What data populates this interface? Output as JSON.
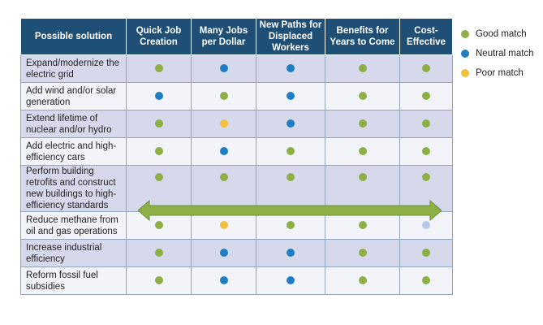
{
  "chart_data": {
    "type": "table",
    "columns": [
      "Possible solution",
      "Quick Job Creation",
      "Many Jobs per Dollar",
      "New Paths for Displaced Workers",
      "Benefits for Years to Come",
      "Cost-Effective"
    ],
    "rows": [
      {
        "label": "Expand/modernize the electric grid",
        "ratings": [
          "good",
          "neutral",
          "neutral",
          "good",
          "good"
        ]
      },
      {
        "label": "Add wind and/or solar generation",
        "ratings": [
          "neutral",
          "good",
          "neutral",
          "good",
          "good"
        ]
      },
      {
        "label": "Extend lifetime of nuclear and/or hydro",
        "ratings": [
          "good",
          "poor",
          "neutral",
          "good",
          "good"
        ]
      },
      {
        "label": "Add electric and high-efficiency cars",
        "ratings": [
          "good",
          "neutral",
          "good",
          "good",
          "good"
        ]
      },
      {
        "label": "Perform building retrofits and construct new buildings to high-efficiency standards",
        "ratings": [
          "good",
          "good",
          "good",
          "good",
          "good"
        ]
      },
      {
        "label": "Reduce methane from oil and gas operations",
        "ratings": [
          "good",
          "poor",
          "good",
          "good",
          "light-neutral"
        ]
      },
      {
        "label": "Increase industrial efficiency",
        "ratings": [
          "good",
          "neutral",
          "neutral",
          "good",
          "good"
        ]
      },
      {
        "label": "Reform fossil fuel subsidies",
        "ratings": [
          "good",
          "neutral",
          "neutral",
          "good",
          "good"
        ]
      }
    ],
    "legend": [
      {
        "key": "good",
        "label": "Good match",
        "color": "#8db046"
      },
      {
        "key": "neutral",
        "label": "Neutral match",
        "color": "#1f7ec1"
      },
      {
        "key": "poor",
        "label": "Poor match",
        "color": "#f2bf3e"
      }
    ],
    "rating_colors": {
      "good": "#8db046",
      "neutral": "#1f7ec1",
      "poor": "#f2bf3e",
      "light-neutral": "#b7cbe6"
    },
    "arrow_row": 4,
    "arrow_color": "#8db046",
    "legend_placement": "right"
  }
}
